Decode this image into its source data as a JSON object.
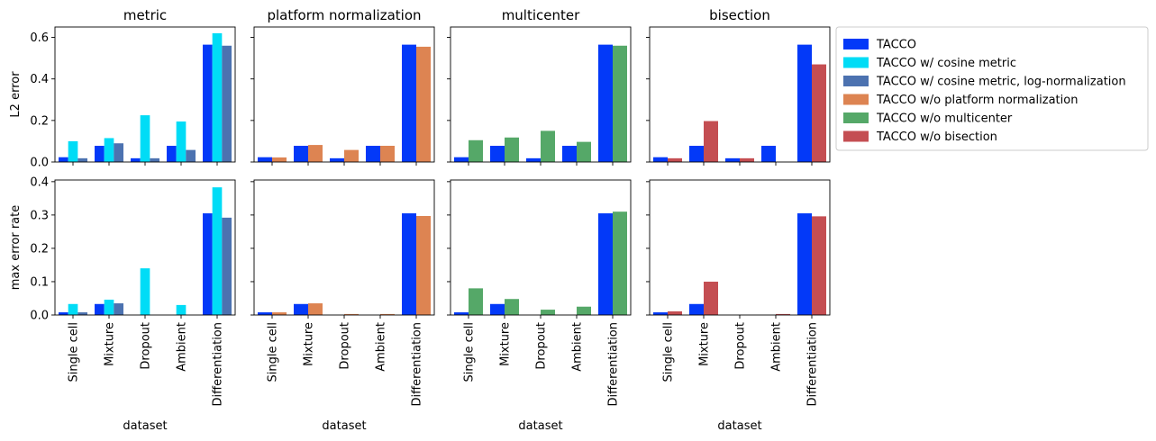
{
  "chart_data": {
    "type": "bar",
    "layout": "grid of 2 rows x 4 panels, shared y axis per row, shared x axis per column",
    "categories": [
      "Single cell",
      "Mixture",
      "Dropout",
      "Ambient",
      "Differentiation"
    ],
    "xlabel": "dataset",
    "columns": [
      {
        "title": "metric",
        "series": [
          "TACCO",
          "TACCO w/ cosine metric",
          "TACCO w/ cosine metric, log-normalization"
        ]
      },
      {
        "title": "platform normalization",
        "series": [
          "TACCO",
          "TACCO w/o platform normalization"
        ]
      },
      {
        "title": "multicenter",
        "series": [
          "TACCO",
          "TACCO w/o multicenter"
        ]
      },
      {
        "title": "bisection",
        "series": [
          "TACCO",
          "TACCO w/o bisection"
        ]
      }
    ],
    "rows": [
      {
        "ylabel": "L2 error",
        "ylim": [
          0,
          0.65
        ],
        "yticks": [
          "0.0",
          "0.2",
          "0.4",
          "0.6"
        ],
        "ytick_values": [
          0,
          0.2,
          0.4,
          0.6
        ],
        "panels": [
          {
            "values": [
              [
                0.023,
                0.078,
                0.018,
                0.078,
                0.565
              ],
              [
                0.1,
                0.115,
                0.225,
                0.195,
                0.62
              ],
              [
                0.018,
                0.09,
                0.018,
                0.058,
                0.56
              ]
            ]
          },
          {
            "values": [
              [
                0.023,
                0.078,
                0.018,
                0.078,
                0.565
              ],
              [
                0.022,
                0.082,
                0.058,
                0.078,
                0.555
              ]
            ]
          },
          {
            "values": [
              [
                0.023,
                0.078,
                0.018,
                0.078,
                0.565
              ],
              [
                0.105,
                0.118,
                0.15,
                0.097,
                0.56
              ]
            ]
          },
          {
            "values": [
              [
                0.023,
                0.078,
                0.018,
                0.078,
                0.565
              ],
              [
                0.018,
                0.197,
                0.018,
                0.0,
                0.47
              ]
            ]
          }
        ]
      },
      {
        "ylabel": "max error rate",
        "ylim": [
          0,
          0.405
        ],
        "yticks": [
          "0.0",
          "0.1",
          "0.2",
          "0.3",
          "0.4"
        ],
        "ytick_values": [
          0,
          0.1,
          0.2,
          0.3,
          0.4
        ],
        "panels": [
          {
            "values": [
              [
                0.008,
                0.033,
                0.0,
                0.0,
                0.305
              ],
              [
                0.033,
                0.046,
                0.14,
                0.03,
                0.383
              ],
              [
                0.008,
                0.035,
                0.0,
                0.0,
                0.292
              ]
            ]
          },
          {
            "values": [
              [
                0.008,
                0.033,
                0.0,
                0.0,
                0.305
              ],
              [
                0.008,
                0.035,
                0.003,
                0.003,
                0.297
              ]
            ]
          },
          {
            "values": [
              [
                0.008,
                0.033,
                0.0,
                0.0,
                0.305
              ],
              [
                0.08,
                0.048,
                0.016,
                0.025,
                0.31
              ]
            ]
          },
          {
            "values": [
              [
                0.008,
                0.033,
                0.0,
                0.0,
                0.305
              ],
              [
                0.011,
                0.1,
                0.0,
                0.003,
                0.296
              ]
            ]
          }
        ]
      }
    ],
    "legend": {
      "placement": "right",
      "entries": [
        {
          "label": "TACCO",
          "color": "#0339f8"
        },
        {
          "label": "TACCO w/ cosine metric",
          "color": "#00dcf6"
        },
        {
          "label": "TACCO w/ cosine metric, log-normalization",
          "color": "#4c72b0"
        },
        {
          "label": "TACCO w/o platform normalization",
          "color": "#dd8452"
        },
        {
          "label": "TACCO w/o multicenter",
          "color": "#55a868"
        },
        {
          "label": "TACCO w/o bisection",
          "color": "#c44e52"
        }
      ]
    }
  }
}
